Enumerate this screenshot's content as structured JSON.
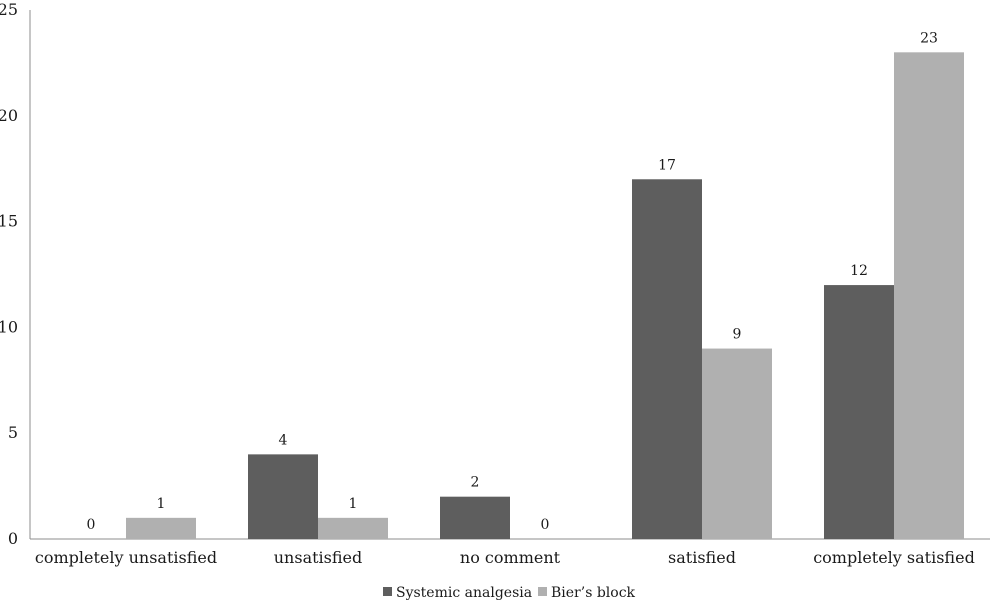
{
  "chart_data": {
    "type": "bar",
    "categories": [
      "completely unsatisfied",
      "unsatisfied",
      "no comment",
      "satisfied",
      "completely satisfied"
    ],
    "series": [
      {
        "name": "Systemic analgesia",
        "values": [
          0,
          4,
          2,
          17,
          12
        ],
        "color": "#5e5e5e"
      },
      {
        "name": "Bier’s block",
        "values": [
          1,
          1,
          0,
          9,
          23
        ],
        "color": "#b0b0b0"
      }
    ],
    "yticks": [
      0,
      5,
      10,
      15,
      20,
      25
    ],
    "ylim": [
      0,
      25
    ],
    "grid": false,
    "legend": "bottom",
    "data_labels": true
  }
}
